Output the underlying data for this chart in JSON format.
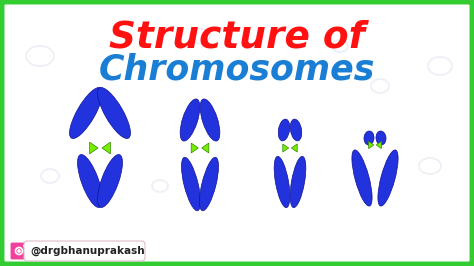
{
  "title_line1": "Structure of",
  "title_line2": "Chromosomes",
  "title_line1_color": "#ff1111",
  "title_line2_color": "#1a7fd4",
  "background_color": "#ffffff",
  "border_color": "#33cc33",
  "border_width": 5,
  "watermark_text": "@drgbhanuprakash",
  "chromosome_color_dark": "#1a1acc",
  "chromosome_color_mid": "#2233dd",
  "chromosome_color_light": "#3355ff",
  "centromere_color": "#77ee00",
  "fig_width": 4.74,
  "fig_height": 2.66,
  "dpi": 100
}
